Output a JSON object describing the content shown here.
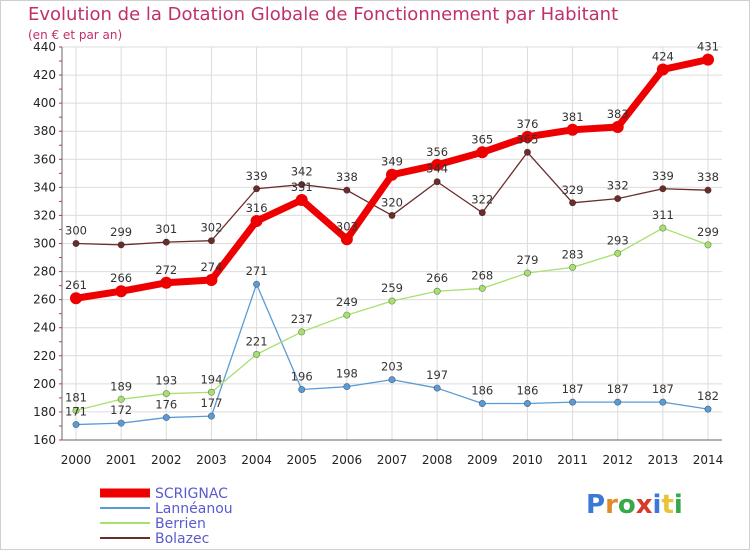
{
  "title": "Evolution de la Dotation Globale de Fonctionnement par Habitant",
  "subtitle": "(en € et par an)",
  "logo": "Proxiti",
  "colors": {
    "scrignac": "#ee0000",
    "lanneanou": "#5b9bd5",
    "berrien": "#a6e06e",
    "bolazec": "#6b2c2c",
    "title": "#c0306a",
    "grid": "#dcdcdc",
    "legend_text": "#5a5ad0"
  },
  "chart_data": {
    "type": "line",
    "title": "Evolution de la Dotation Globale de Fonctionnement par Habitant",
    "ylabel": "(en € et par an)",
    "xlabel": "",
    "x": [
      "2000",
      "2001",
      "2002",
      "2003",
      "2004",
      "2005",
      "2006",
      "2007",
      "2008",
      "2009",
      "2010",
      "2011",
      "2012",
      "2013",
      "2014"
    ],
    "ylim": [
      160,
      440
    ],
    "yticks": [
      160,
      180,
      200,
      220,
      240,
      260,
      280,
      300,
      320,
      340,
      360,
      380,
      400,
      420,
      440
    ],
    "grid": true,
    "legend_position": "bottom-left",
    "series": [
      {
        "name": "SCRIGNAC",
        "key": "scrignac",
        "values": [
          261,
          266,
          272,
          274,
          316,
          331,
          303,
          349,
          356,
          365,
          376,
          381,
          383,
          424,
          431
        ]
      },
      {
        "name": "Lannéanou",
        "key": "lanneanou",
        "values": [
          171,
          172,
          176,
          177,
          271,
          196,
          198,
          203,
          197,
          186,
          186,
          187,
          187,
          187,
          182
        ]
      },
      {
        "name": "Berrien",
        "key": "berrien",
        "values": [
          181,
          189,
          193,
          194,
          221,
          237,
          249,
          259,
          266,
          268,
          279,
          283,
          293,
          311,
          299
        ]
      },
      {
        "name": "Bolazec",
        "key": "bolazec",
        "values": [
          300,
          299,
          301,
          302,
          339,
          342,
          338,
          320,
          344,
          322,
          365,
          329,
          332,
          339,
          338
        ]
      }
    ]
  }
}
